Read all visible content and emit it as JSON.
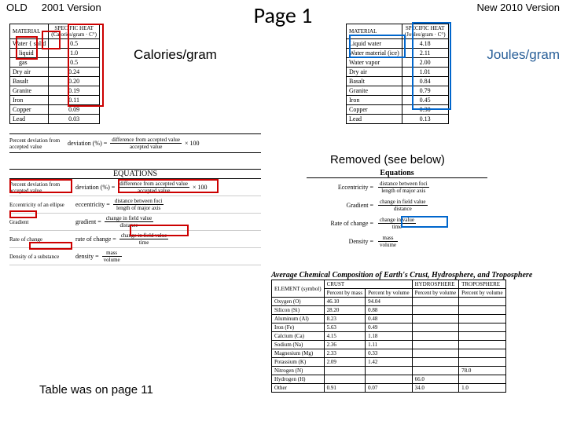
{
  "header": {
    "old_label": "OLD",
    "old_version": "2001 Version",
    "title": "Page 1",
    "new_version": "New 2010 Version"
  },
  "labels": {
    "calories": "Calories/gram",
    "joules": "Joules/gram",
    "removed": "Removed (see below)",
    "footer": "Table was on page 11"
  },
  "old_table": {
    "col1": "MATERIAL",
    "col2_line1": "SPECIFIC HEAT",
    "col2_line2": "(Calories/gram · C°)",
    "rows": [
      {
        "m": "Water",
        "sub": "solid",
        "v": "0.5"
      },
      {
        "m": "",
        "sub": "liquid",
        "v": "1.0"
      },
      {
        "m": "",
        "sub": "gas",
        "v": "0.5"
      },
      {
        "m": "Dry air",
        "sub": "",
        "v": "0.24"
      },
      {
        "m": "Basalt",
        "sub": "",
        "v": "0.20"
      },
      {
        "m": "Granite",
        "sub": "",
        "v": "0.19"
      },
      {
        "m": "Iron",
        "sub": "",
        "v": "0.11"
      },
      {
        "m": "Copper",
        "sub": "",
        "v": "0.09"
      },
      {
        "m": "Lead",
        "sub": "",
        "v": "0.03"
      }
    ]
  },
  "new_table": {
    "col1": "MATERIAL",
    "col2_line1": "SPECIFIC HEAT",
    "col2_line2": "(Joules/gram · C°)",
    "rows": [
      {
        "m": "Liquid water",
        "v": "4.18"
      },
      {
        "m": "Water material (ice)",
        "v": "2.11"
      },
      {
        "m": "Water vapor",
        "v": "2.00"
      },
      {
        "m": "Dry air",
        "v": "1.01"
      },
      {
        "m": "Basalt",
        "v": "0.84"
      },
      {
        "m": "Granite",
        "v": "0.79"
      },
      {
        "m": "Iron",
        "v": "0.45"
      },
      {
        "m": "Copper",
        "v": "0.38"
      },
      {
        "m": "Lead",
        "v": "0.13"
      }
    ]
  },
  "old_pd": {
    "label": "Percent deviation from accepted value",
    "lhs": "deviation (%) =",
    "top": "difference from accepted value",
    "bot": "accepted value",
    "tail": "× 100"
  },
  "equations_old": {
    "title": "EQUATIONS",
    "rows": [
      {
        "label": "Percent deviation from accepted value",
        "lhs": "deviation (%) =",
        "top": "difference from accepted value",
        "bot": "accepted value",
        "tail": "× 100"
      },
      {
        "label": "Eccentricity of an ellipse",
        "lhs": "eccentricity =",
        "top": "distance between foci",
        "bot": "length of major axis",
        "tail": ""
      },
      {
        "label": "Gradient",
        "lhs": "gradient =",
        "top": "change in field value",
        "bot": "distance",
        "tail": ""
      },
      {
        "label": "Rate of change",
        "lhs": "rate of change =",
        "top": "change in field value",
        "bot": "time",
        "tail": ""
      },
      {
        "label": "Density of a substance",
        "lhs": "density =",
        "top": "mass",
        "bot": "volume",
        "tail": ""
      }
    ]
  },
  "equations_new": {
    "title": "Equations",
    "rows": [
      {
        "lhs": "Eccentricity =",
        "top": "distance between foci",
        "bot": "length of major axis"
      },
      {
        "lhs": "Gradient =",
        "top": "change in field value",
        "bot": "distance"
      },
      {
        "lhs": "Rate of change =",
        "top": "change in value",
        "bot": "time"
      },
      {
        "lhs": "Density =",
        "top": "mass",
        "bot": "volume"
      }
    ]
  },
  "comp_table": {
    "title": "Average Chemical Composition of Earth's Crust, Hydrosphere, and Troposphere",
    "head": [
      "ELEMENT (symbol)",
      "CRUST",
      "HYDROSPHERE",
      "TROPOSPHERE"
    ],
    "sub": [
      "",
      "Percent by mass",
      "Percent by volume",
      "Percent by volume",
      "Percent by volume"
    ],
    "rows": [
      [
        "Oxygen (O)",
        "46.10",
        "94.04",
        "",
        ""
      ],
      [
        "Silicon (Si)",
        "28.20",
        "0.88",
        "",
        ""
      ],
      [
        "Aluminum (Al)",
        "8.23",
        "0.48",
        "",
        ""
      ],
      [
        "Iron (Fe)",
        "5.63",
        "0.49",
        "",
        ""
      ],
      [
        "Calcium (Ca)",
        "4.15",
        "1.18",
        "",
        ""
      ],
      [
        "Sodium (Na)",
        "2.36",
        "1.11",
        "",
        ""
      ],
      [
        "Magnesium (Mg)",
        "2.33",
        "0.33",
        "",
        ""
      ],
      [
        "Potassium (K)",
        "2.09",
        "1.42",
        "",
        ""
      ],
      [
        "Nitrogen (N)",
        "",
        "",
        "",
        "78.0"
      ],
      [
        "Hydrogen (H)",
        "",
        "",
        "66.0",
        ""
      ],
      [
        "Other",
        "0.91",
        "0.07",
        "34.0",
        "1.0"
      ]
    ]
  },
  "colors": {
    "red": "#c00000",
    "blue": "#0066cc"
  }
}
